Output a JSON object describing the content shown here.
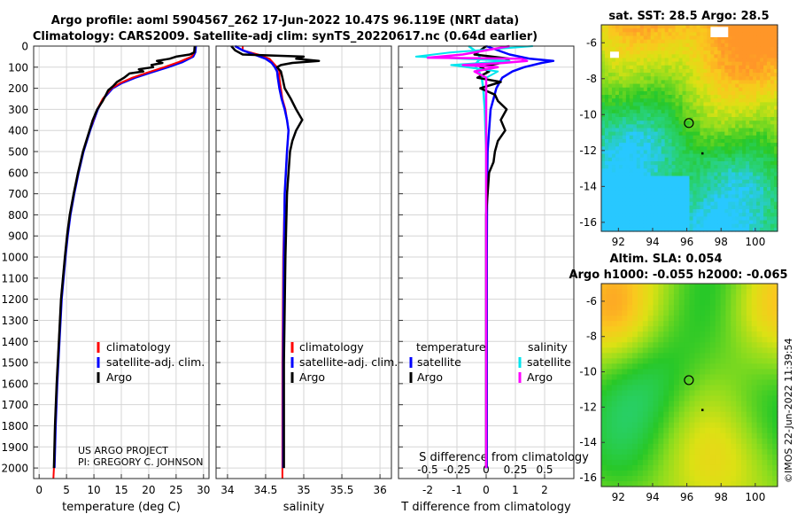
{
  "header": {
    "title_line1": "Argo profile: aoml 5904567_262 17-Jun-2022 10.47S 96.119E (NRT data)",
    "title_line2": "Climatology: CARS2009. Satellite-adj clim: synTS_20220617.nc (0.64d earlier)"
  },
  "colors": {
    "climatology": "#ff0000",
    "satellite": "#0000ff",
    "argo": "#000000",
    "sat_temp": "#00e5ee",
    "sat_sal": "#ff00ff"
  },
  "depth_ticks": [
    0,
    100,
    200,
    300,
    400,
    500,
    600,
    700,
    800,
    900,
    1000,
    1100,
    1200,
    1300,
    1400,
    1500,
    1600,
    1700,
    1800,
    1900,
    2000
  ],
  "legend": {
    "climatology": "climatology",
    "satellite_adj": "satellite-adj. clim.",
    "argo": "Argo",
    "temperature": "temperature",
    "salinity": "salinity",
    "satellite": "satellite"
  },
  "credits": {
    "project": "US ARGO PROJECT",
    "pi": "PI: GREGORY C. JOHNSON"
  },
  "maps": {
    "sst_title": "sat. SST: 28.5 Argo: 28.5",
    "sla_title1": "Altim. SLA: 0.054",
    "sla_title2": "Argo h1000: -0.055 h2000: -0.065",
    "lat_ticks": [
      "-6",
      "-8",
      "-10",
      "-12",
      "-14",
      "-16"
    ],
    "lon_ticks": [
      "92",
      "94",
      "96",
      "98",
      "100"
    ],
    "float_lon": 96.119,
    "float_lat": -10.47
  },
  "timestamp": "©IMOS 22-Jun-2022 11:39:54",
  "chart_data": [
    {
      "type": "line",
      "name": "temperature",
      "xlabel": "temperature (deg C)",
      "xlim": [
        -1,
        31
      ],
      "ylim": [
        2050,
        0
      ],
      "xticks": [
        "0",
        "5",
        "10",
        "15",
        "20",
        "25",
        "30"
      ],
      "xtick_values": [
        0,
        5,
        10,
        15,
        20,
        25,
        30
      ],
      "series": [
        {
          "name": "climatology",
          "depth": [
            0,
            30,
            50,
            75,
            100,
            125,
            150,
            175,
            200,
            250,
            300,
            400,
            500,
            600,
            700,
            800,
            900,
            1000,
            1200,
            1400,
            1600,
            1800,
            2000,
            2050
          ],
          "values": [
            28.4,
            28.3,
            27.8,
            25.5,
            22.8,
            19.8,
            17.0,
            14.8,
            13.2,
            11.6,
            10.6,
            9.2,
            8.0,
            7.1,
            6.3,
            5.6,
            5.1,
            4.7,
            4.0,
            3.6,
            3.2,
            2.9,
            2.7,
            2.6
          ]
        },
        {
          "name": "satellite-adj. clim.",
          "depth": [
            0,
            30,
            50,
            75,
            100,
            125,
            150,
            175,
            200,
            250,
            300,
            400,
            500,
            600,
            700,
            800,
            900,
            1000,
            1200,
            1400,
            1600,
            1800,
            2000
          ],
          "values": [
            28.6,
            28.5,
            28.1,
            26.2,
            23.5,
            20.4,
            17.5,
            15.1,
            13.4,
            11.7,
            10.7,
            9.3,
            8.1,
            7.2,
            6.4,
            5.7,
            5.2,
            4.8,
            4.1,
            3.7,
            3.3,
            3.0,
            2.8
          ]
        },
        {
          "name": "Argo",
          "depth": [
            0,
            30,
            40,
            50,
            60,
            70,
            80,
            90,
            100,
            110,
            120,
            130,
            150,
            170,
            190,
            210,
            230,
            260,
            300,
            350,
            400,
            500,
            600,
            700,
            800,
            900,
            1000,
            1200,
            1400,
            1600,
            1800,
            2000
          ],
          "values": [
            28.4,
            28.3,
            27.5,
            25.0,
            23.8,
            21.5,
            22.5,
            20.5,
            20.8,
            18.2,
            19.0,
            16.5,
            15.5,
            14.2,
            13.5,
            12.6,
            12.2,
            11.6,
            10.6,
            9.8,
            9.2,
            8.0,
            7.1,
            6.3,
            5.6,
            5.1,
            4.7,
            4.0,
            3.6,
            3.2,
            2.9,
            2.7
          ]
        }
      ]
    },
    {
      "type": "line",
      "name": "salinity",
      "xlabel": "salinity",
      "xlim": [
        33.85,
        36.15
      ],
      "ylim": [
        2050,
        0
      ],
      "xticks": [
        "34",
        "34.5",
        "35",
        "35.5",
        "36"
      ],
      "xtick_values": [
        34,
        34.5,
        35,
        35.5,
        36
      ],
      "series": [
        {
          "name": "climatology",
          "depth": [
            0,
            20,
            40,
            60,
            80,
            100,
            120,
            150,
            200,
            250,
            300,
            350,
            400,
            500,
            700,
            1000,
            1500,
            2000,
            2050
          ],
          "values": [
            34.2,
            34.2,
            34.4,
            34.55,
            34.6,
            34.65,
            34.68,
            34.68,
            34.7,
            34.72,
            34.76,
            34.78,
            34.8,
            34.78,
            34.75,
            34.73,
            34.72,
            34.72,
            34.72
          ]
        },
        {
          "name": "satellite-adj. clim.",
          "depth": [
            0,
            20,
            40,
            60,
            80,
            100,
            120,
            150,
            200,
            250,
            300,
            350,
            400,
            500,
            700,
            1000,
            1500,
            2000
          ],
          "values": [
            34.1,
            34.2,
            34.35,
            34.5,
            34.58,
            34.62,
            34.65,
            34.66,
            34.68,
            34.71,
            34.75,
            34.78,
            34.8,
            34.78,
            34.75,
            34.74,
            34.73,
            34.73
          ]
        },
        {
          "name": "Argo",
          "depth": [
            0,
            20,
            40,
            50,
            60,
            70,
            80,
            90,
            100,
            120,
            150,
            200,
            250,
            300,
            350,
            400,
            450,
            500,
            700,
            1000,
            1500,
            2000
          ],
          "values": [
            34.05,
            34.1,
            34.2,
            35.0,
            34.9,
            35.2,
            34.85,
            34.7,
            34.65,
            34.7,
            34.72,
            34.75,
            34.83,
            34.9,
            34.98,
            34.9,
            34.85,
            34.82,
            34.78,
            34.76,
            34.74,
            34.74
          ]
        }
      ]
    },
    {
      "type": "line",
      "name": "difference from climatology",
      "xlabel": "T difference from climatology",
      "xlabel_top": "S difference from climatology",
      "xlim": [
        -3,
        3
      ],
      "ylim": [
        2050,
        0
      ],
      "xticks": [
        "-2",
        "-1",
        "0",
        "1",
        "2"
      ],
      "xtick_values": [
        -2,
        -1,
        0,
        1,
        2
      ],
      "sticks": [
        "-0.5",
        "-0.25",
        "0",
        "0.25",
        "0.5"
      ],
      "stick_values": [
        -0.5,
        -0.25,
        0,
        0.25,
        0.5
      ],
      "s_scale": 0.25,
      "series": [
        {
          "name": "satellite temperature",
          "depth": [
            0,
            30,
            60,
            90,
            120,
            150,
            200,
            300,
            500,
            1000,
            2000
          ],
          "values": [
            -0.6,
            -0.3,
            -0.2,
            -0.4,
            -0.25,
            -0.15,
            -0.1,
            -0.05,
            0,
            0,
            0
          ]
        },
        {
          "name": "satellite salinity",
          "depth": [
            0,
            30,
            50,
            70,
            90,
            120,
            150,
            200,
            300,
            500,
            1000,
            2000
          ],
          "values": [
            0.4,
            -0.3,
            -0.6,
            0.2,
            -0.3,
            0.1,
            0.0,
            0.0,
            0.0,
            0.0,
            0.0,
            0.0
          ]
        },
        {
          "name": "Argo temperature",
          "depth": [
            0,
            40,
            60,
            80,
            100,
            120,
            150,
            170,
            200,
            230,
            260,
            300,
            350,
            400,
            450,
            500,
            550,
            600,
            700,
            800,
            1000,
            1200,
            1500,
            1800,
            2000
          ],
          "values": [
            0,
            -0.4,
            0.8,
            0.5,
            -0.2,
            0.1,
            -0.3,
            0.5,
            -0.2,
            0.3,
            0.4,
            0.7,
            0.5,
            0.65,
            0.4,
            0.3,
            0.25,
            0.1,
            0.05,
            0,
            0,
            0,
            0,
            0,
            0
          ]
        },
        {
          "name": "Argo salinity",
          "depth": [
            0,
            40,
            55,
            60,
            70,
            80,
            90,
            100,
            120,
            150,
            200,
            300,
            500,
            1000,
            2000
          ],
          "values": [
            0.2,
            -0.2,
            -0.5,
            0.3,
            0.35,
            0.15,
            -0.2,
            0.1,
            -0.1,
            0.0,
            0.0,
            0.0,
            0.0,
            0.0,
            0.0
          ]
        },
        {
          "name": "satellite-adj. T diff",
          "depth": [
            0,
            40,
            60,
            70,
            80,
            100,
            120,
            150,
            200,
            250,
            300,
            400,
            500,
            700,
            1000,
            2000
          ],
          "values": [
            0,
            0.8,
            1.5,
            2.3,
            1.9,
            1.3,
            0.9,
            0.55,
            0.35,
            0.25,
            0.15,
            0.1,
            0.05,
            0.03,
            0.02,
            0.02
          ]
        }
      ]
    }
  ]
}
